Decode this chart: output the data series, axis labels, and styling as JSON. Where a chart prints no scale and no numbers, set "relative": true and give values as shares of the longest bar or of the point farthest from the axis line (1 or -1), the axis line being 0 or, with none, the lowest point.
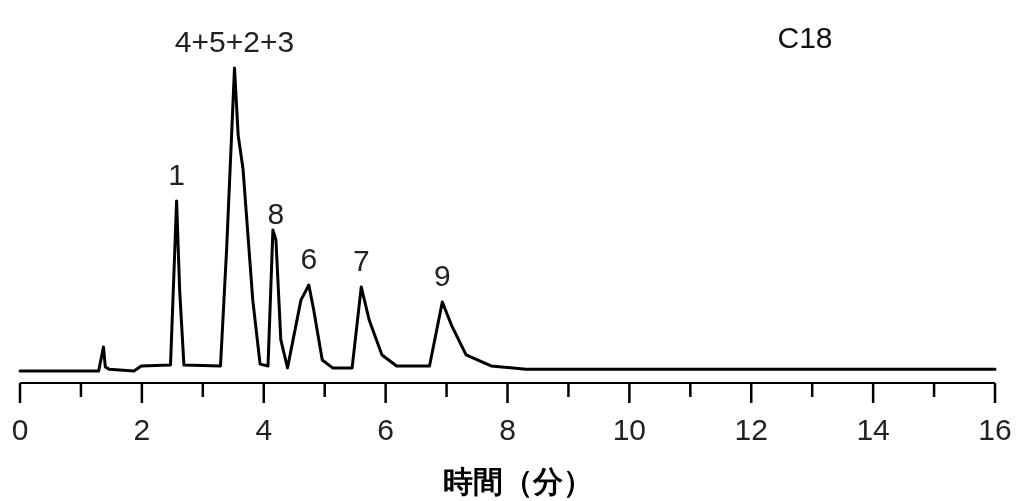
{
  "chart_data": {
    "type": "line",
    "title": "C18",
    "xlabel": "時間（分）",
    "relative": true,
    "xlim": [
      0,
      16
    ],
    "xticks": [
      0,
      {
        "value": 1,
        "label": null
      },
      2,
      {
        "value": 3,
        "label": null
      },
      4,
      {
        "value": 5,
        "label": null
      },
      6,
      {
        "value": 7,
        "label": null
      },
      8,
      {
        "value": 9,
        "label": null
      },
      10,
      {
        "value": 11,
        "label": null
      },
      12,
      {
        "value": 13,
        "label": null
      },
      14,
      {
        "value": 15,
        "label": null
      },
      16
    ],
    "grid": false,
    "marker": "none",
    "line_style": "solid",
    "series": [
      {
        "color": "#000000",
        "x": [
          0,
          1.29,
          1.37,
          1.4,
          1.46,
          1.87,
          1.99,
          2.47,
          2.57,
          2.62,
          2.69,
          3.29,
          3.39,
          3.52,
          3.58,
          3.66,
          3.82,
          3.94,
          4.07,
          4.15,
          4.2,
          4.28,
          4.39,
          4.61,
          4.74,
          4.82,
          4.96,
          5.13,
          5.45,
          5.6,
          5.73,
          5.94,
          6.18,
          6.72,
          6.93,
          7.08,
          7.32,
          7.73,
          8.3,
          16
        ],
        "values": [
          0.038,
          0.038,
          0.114,
          0.051,
          0.044,
          0.038,
          0.054,
          0.057,
          0.578,
          0.295,
          0.057,
          0.054,
          0.422,
          1.0,
          0.787,
          0.679,
          0.263,
          0.06,
          0.054,
          0.486,
          0.454,
          0.137,
          0.048,
          0.263,
          0.311,
          0.232,
          0.073,
          0.048,
          0.048,
          0.305,
          0.2,
          0.089,
          0.054,
          0.054,
          0.257,
          0.184,
          0.089,
          0.054,
          0.044,
          0.044
        ]
      }
    ],
    "annotations": [
      {
        "text": "1",
        "x": 2.57,
        "y": 0.578
      },
      {
        "text": "4+5+2+3",
        "x": 3.52,
        "y": 1.0
      },
      {
        "text": "8",
        "x": 4.2,
        "y": 0.454
      },
      {
        "text": "6",
        "x": 4.74,
        "y": 0.311
      },
      {
        "text": "7",
        "x": 5.6,
        "y": 0.305
      },
      {
        "text": "9",
        "x": 6.93,
        "y": 0.257
      }
    ]
  }
}
